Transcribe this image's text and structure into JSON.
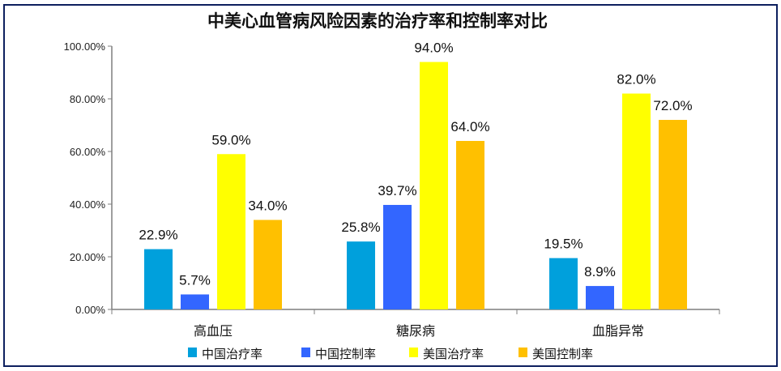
{
  "chart_data": {
    "type": "bar",
    "title": "中美心血管病风险因素的治疗率和控制率对比",
    "categories": [
      "高血压",
      "糖尿病",
      "血脂异常"
    ],
    "series": [
      {
        "name": "中国治疗率",
        "color": "#00a0dc",
        "values": [
          22.9,
          25.8,
          19.5
        ],
        "labels": [
          "22.9%",
          "25.8%",
          "19.5%"
        ]
      },
      {
        "name": "中国控制率",
        "color": "#3366ff",
        "values": [
          5.7,
          39.7,
          8.9
        ],
        "labels": [
          "5.7%",
          "39.7%",
          "8.9%"
        ]
      },
      {
        "name": "美国治疗率",
        "color": "#ffff00",
        "values": [
          59.0,
          94.0,
          82.0
        ],
        "labels": [
          "59.0%",
          "94.0%",
          "82.0%"
        ]
      },
      {
        "name": "美国控制率",
        "color": "#ffc000",
        "values": [
          34.0,
          64.0,
          72.0
        ],
        "labels": [
          "34.0%",
          "64.0%",
          "72.0%"
        ]
      }
    ],
    "ylim": [
      0,
      100
    ],
    "yticks": [
      0,
      20,
      40,
      60,
      80,
      100
    ],
    "ytick_labels": [
      "0.00%",
      "20.00%",
      "40.00%",
      "60.00%",
      "80.00%",
      "100.00%"
    ],
    "xlabel": "",
    "ylabel": "",
    "grid": false,
    "legend": "bottom"
  }
}
